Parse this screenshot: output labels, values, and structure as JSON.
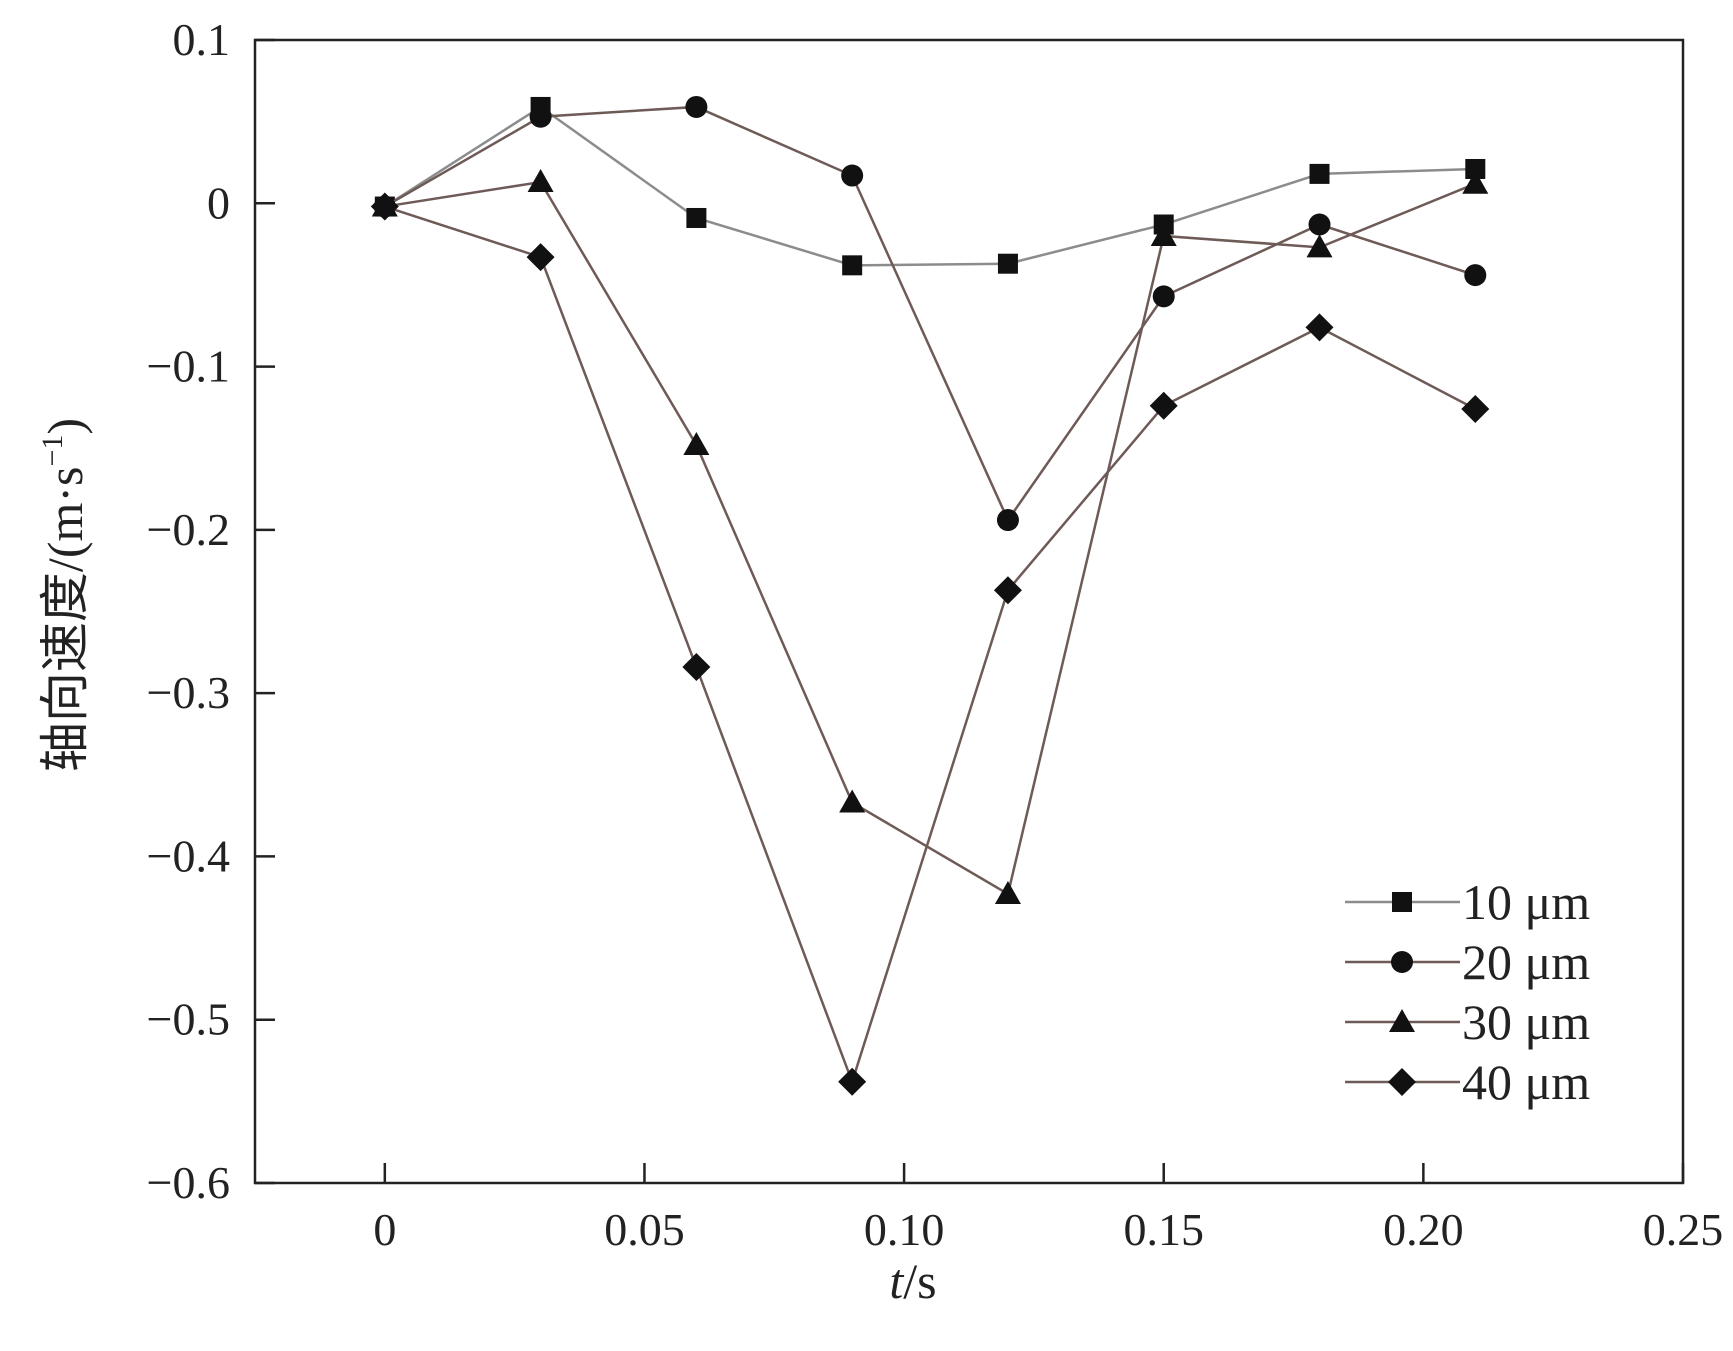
{
  "chart_data": {
    "type": "line",
    "title": "",
    "xlabel_italic": "t",
    "xlabel_unit": "/s",
    "ylabel": "轴向速度/(m·s",
    "ylabel_sup": "−1",
    "ylabel_close": ")",
    "xlim": [
      -0.025,
      0.25
    ],
    "ylim": [
      -0.6,
      0.1
    ],
    "xticks": [
      0,
      0.05,
      0.1,
      0.15,
      0.2,
      0.25
    ],
    "xtick_labels": [
      "0",
      "0.05",
      "0.10",
      "0.15",
      "0.20",
      "0.25"
    ],
    "yticks": [
      0.1,
      0,
      -0.1,
      -0.2,
      -0.3,
      -0.4,
      -0.5,
      -0.6
    ],
    "ytick_labels": [
      "0.1",
      "0",
      "−0.1",
      "−0.2",
      "−0.3",
      "−0.4",
      "−0.5",
      "−0.6"
    ],
    "grid": false,
    "legend_position": "bottom-right",
    "x": [
      0,
      0.03,
      0.06,
      0.09,
      0.12,
      0.15,
      0.18,
      0.21
    ],
    "series": [
      {
        "name": "10 μm",
        "marker": "square",
        "color": "#8c8c8c",
        "values": [
          -0.002,
          0.059,
          -0.009,
          -0.038,
          -0.037,
          -0.013,
          0.018,
          0.021
        ]
      },
      {
        "name": "20 μm",
        "marker": "circle",
        "color": "#6e5a56",
        "values": [
          -0.002,
          0.053,
          0.059,
          0.017,
          -0.194,
          -0.057,
          -0.013,
          -0.044
        ]
      },
      {
        "name": "30 μm",
        "marker": "triangle",
        "color": "#6e5a56",
        "values": [
          -0.002,
          0.013,
          -0.148,
          -0.367,
          -0.423,
          -0.02,
          -0.027,
          0.012
        ]
      },
      {
        "name": "40 μm",
        "marker": "diamond",
        "color": "#6e5a56",
        "values": [
          -0.002,
          -0.033,
          -0.284,
          -0.538,
          -0.237,
          -0.124,
          -0.076,
          -0.126
        ]
      }
    ]
  }
}
